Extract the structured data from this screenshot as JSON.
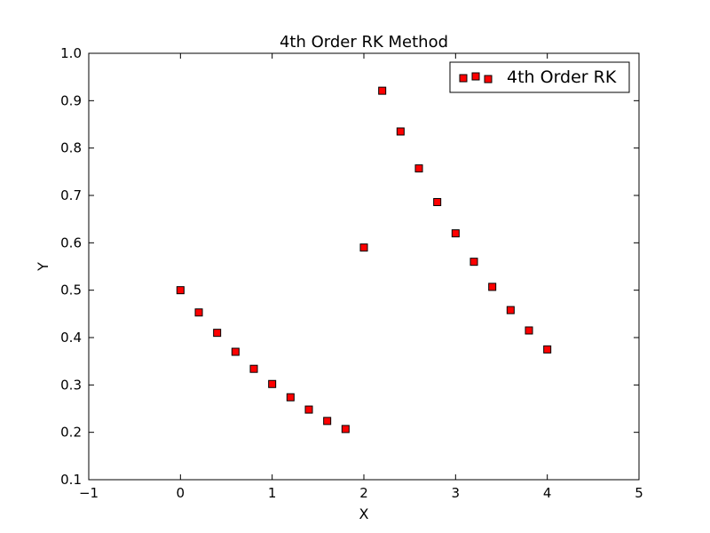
{
  "chart_data": {
    "type": "scatter",
    "title": "4th Order RK Method",
    "xlabel": "X",
    "ylabel": "Y",
    "xlim": [
      -1,
      5
    ],
    "ylim": [
      0.1,
      1.0
    ],
    "xticks": [
      -1,
      0,
      1,
      2,
      3,
      4,
      5
    ],
    "xtick_labels": [
      "−1",
      "0",
      "1",
      "2",
      "3",
      "4",
      "5"
    ],
    "yticks": [
      0.1,
      0.2,
      0.3,
      0.4,
      0.5,
      0.6,
      0.7,
      0.8,
      0.9,
      1.0
    ],
    "ytick_labels": [
      "0.1",
      "0.2",
      "0.3",
      "0.4",
      "0.5",
      "0.6",
      "0.7",
      "0.8",
      "0.9",
      "1.0"
    ],
    "grid": false,
    "legend_position": "top-right",
    "series": [
      {
        "name": "4th Order RK",
        "marker": "square",
        "color": "#ff0000",
        "edge_color": "#000000",
        "x": [
          0,
          0.2,
          0.4,
          0.6,
          0.8,
          1.0,
          1.2,
          1.4,
          1.6,
          1.8,
          2.0,
          2.2,
          2.4,
          2.6,
          2.8,
          3.0,
          3.2,
          3.4,
          3.6,
          3.8,
          4.0
        ],
        "y": [
          0.5,
          0.453,
          0.41,
          0.37,
          0.334,
          0.302,
          0.274,
          0.248,
          0.224,
          0.207,
          0.59,
          0.921,
          0.835,
          0.757,
          0.686,
          0.62,
          0.56,
          0.507,
          0.458,
          0.415,
          0.375
        ]
      }
    ]
  }
}
